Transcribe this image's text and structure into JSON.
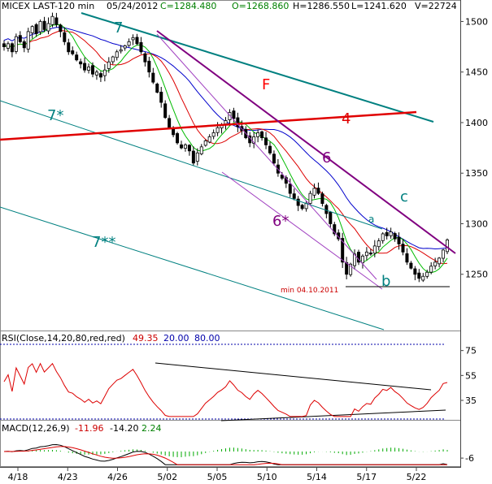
{
  "header": {
    "symbol": "MICEX LAST-120 min",
    "date": "05/24/2012",
    "close": "C=1284.480",
    "open": "O=1268.860",
    "high": "H=1286.550",
    "low": "L=1241.620",
    "volume": "V=22724"
  },
  "rsi_label": {
    "title": "RSI(Close,14,20,80,red,red)",
    "value": "49.35",
    "lower": "20.00",
    "upper": "80.00"
  },
  "macd_label": {
    "title": "MACD(12,26,9)",
    "macd": "-11.96",
    "signal": "-14.20",
    "hist": "2.24"
  },
  "annotations": {
    "n7": "7",
    "n7star": "7*",
    "n7starstar": "7**",
    "n4": "4",
    "f": "F",
    "n6": "6",
    "n6star": "6*",
    "a": "a",
    "b": "b",
    "c": "c",
    "min_label": "min 04.10.2011"
  },
  "colors": {
    "price_up": "#ffffff",
    "price_down": "#000000",
    "ma_fast": "#00bb00",
    "ma_mid": "#dd0000",
    "ma_slow": "#0000cc",
    "line_7": "#008080",
    "line_4": "#e00000",
    "line_6": "#800080",
    "rsi": "#dd0000",
    "rsi_levels": "#0000aa",
    "macd": "#000000",
    "signal": "#dd0000",
    "hist": "#00aa00",
    "f_label": "#ff0000",
    "min_label": "#cc0000"
  },
  "chart_data": [
    {
      "type": "candlestick",
      "title": "MICEX LAST-120 min",
      "price_range": [
        1200,
        1510
      ],
      "y_ticks": [
        1250,
        1300,
        1350,
        1400,
        1450,
        1500
      ],
      "x_ticks": [
        "4/18",
        "4/23",
        "4/26",
        "5/02",
        "5/05",
        "5/10",
        "5/14",
        "5/17",
        "5/22"
      ],
      "close_path": [
        1475,
        1478,
        1470,
        1485,
        1480,
        1474,
        1490,
        1495,
        1488,
        1500,
        1492,
        1498,
        1505,
        1497,
        1490,
        1480,
        1470,
        1468,
        1462,
        1458,
        1452,
        1455,
        1448,
        1450,
        1445,
        1452,
        1460,
        1465,
        1470,
        1472,
        1476,
        1480,
        1484,
        1478,
        1470,
        1460,
        1450,
        1440,
        1430,
        1420,
        1405,
        1395,
        1388,
        1380,
        1375,
        1378,
        1372,
        1360,
        1370,
        1376,
        1382,
        1386,
        1390,
        1395,
        1398,
        1402,
        1410,
        1404,
        1396,
        1392,
        1385,
        1380,
        1386,
        1390,
        1385,
        1378,
        1370,
        1360,
        1350,
        1345,
        1340,
        1330,
        1325,
        1318,
        1315,
        1320,
        1330,
        1335,
        1330,
        1320,
        1310,
        1300,
        1290,
        1285,
        1262,
        1250,
        1260,
        1270,
        1262,
        1268,
        1272,
        1270,
        1278,
        1283,
        1290,
        1288,
        1292,
        1285,
        1280,
        1272,
        1262,
        1256,
        1250,
        1246,
        1248,
        1252,
        1258,
        1262,
        1266,
        1274,
        1284
      ],
      "lines": [
        {
          "label": "7",
          "from": [
            "4/18",
            1505
          ],
          "to": [
            "5/22",
            1402
          ]
        },
        {
          "label": "4",
          "from": [
            "4/18",
            1384
          ],
          "to": [
            "5/22",
            1410
          ]
        },
        {
          "label": "6",
          "from": [
            "5/02",
            1489
          ],
          "to": [
            "5/24",
            1278
          ]
        }
      ],
      "horizontal_levels": [
        {
          "label": "min 04.10.2011",
          "value": 1242
        }
      ],
      "annotations": [
        "7",
        "7*",
        "7**",
        "4",
        "F",
        "6",
        "6*",
        "a",
        "b",
        "c"
      ]
    },
    {
      "type": "line",
      "title": "RSI(Close,14,20,80,red,red)",
      "y_ticks": [
        35,
        55,
        75
      ],
      "levels": [
        20,
        80
      ],
      "last_value": 49.35
    },
    {
      "type": "line",
      "title": "MACD(12,26,9)",
      "y_ticks": [
        -6
      ],
      "last_macd": -11.96,
      "last_signal": -14.2,
      "last_hist": 2.24
    }
  ]
}
